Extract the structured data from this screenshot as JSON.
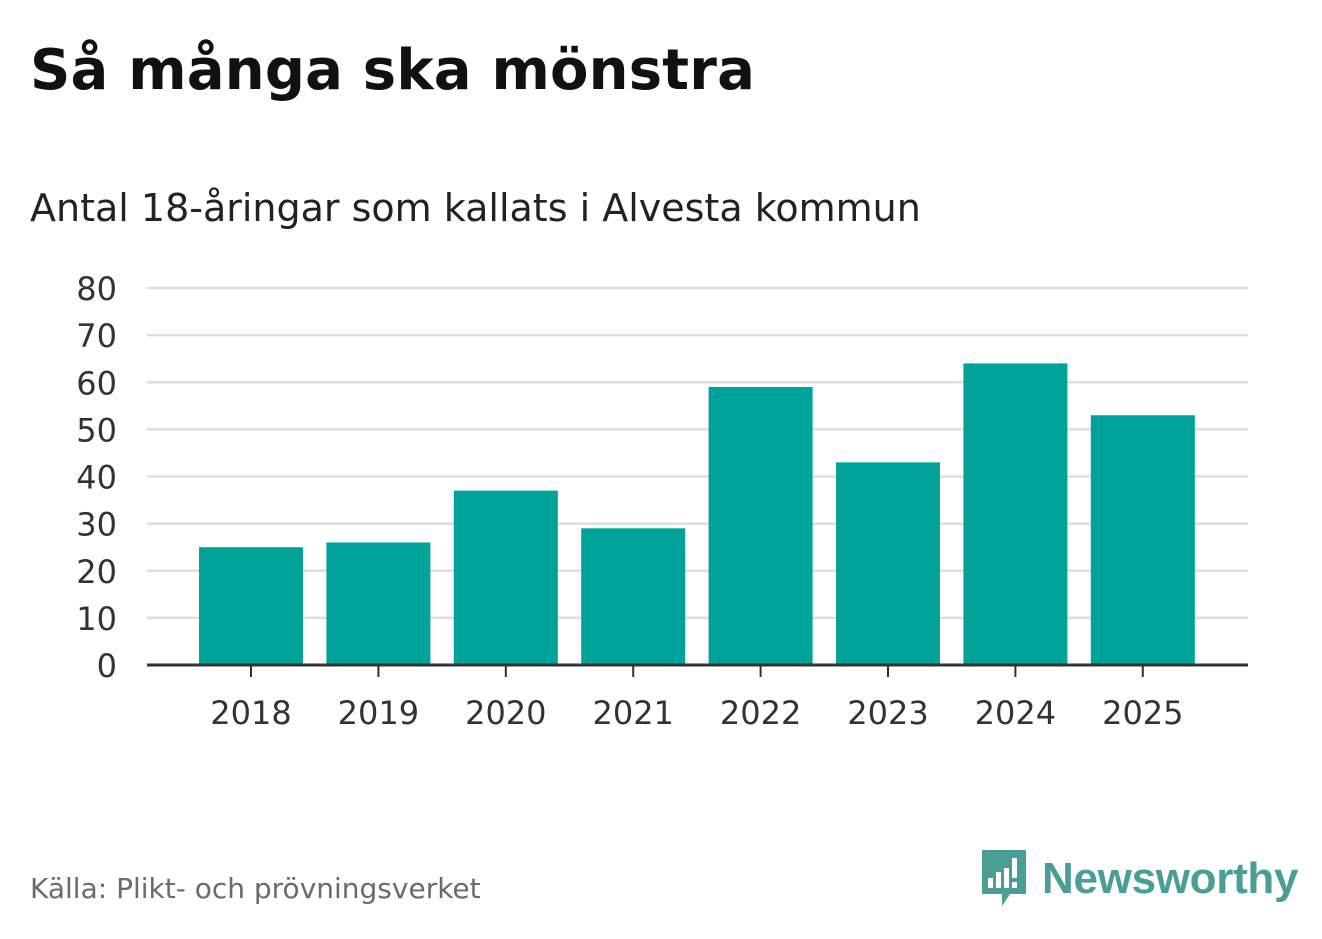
{
  "title": "Så många ska mönstra",
  "subtitle": "Antal 18-åringar som kallats i Alvesta kommun",
  "source": "Källa: Plikt- och prövningsverket",
  "brand": {
    "name": "Newsworthy",
    "icon": "newsworthy-logo-icon",
    "color": "#4a9e97"
  },
  "colors": {
    "bar": "#00a39a",
    "grid": "#dddddd",
    "axis": "#333333",
    "text": "#333333"
  },
  "chart_data": {
    "type": "bar",
    "title": "Så många ska mönstra",
    "subtitle": "Antal 18-åringar som kallats i Alvesta kommun",
    "xlabel": "",
    "ylabel": "",
    "categories": [
      "2018",
      "2019",
      "2020",
      "2021",
      "2022",
      "2023",
      "2024",
      "2025"
    ],
    "values": [
      25,
      26,
      37,
      29,
      59,
      43,
      64,
      53
    ],
    "ylim": [
      0,
      80
    ],
    "yticks": [
      "0",
      "10",
      "20",
      "30",
      "40",
      "50",
      "60",
      "70",
      "80"
    ],
    "grid": true,
    "legend": "none"
  }
}
